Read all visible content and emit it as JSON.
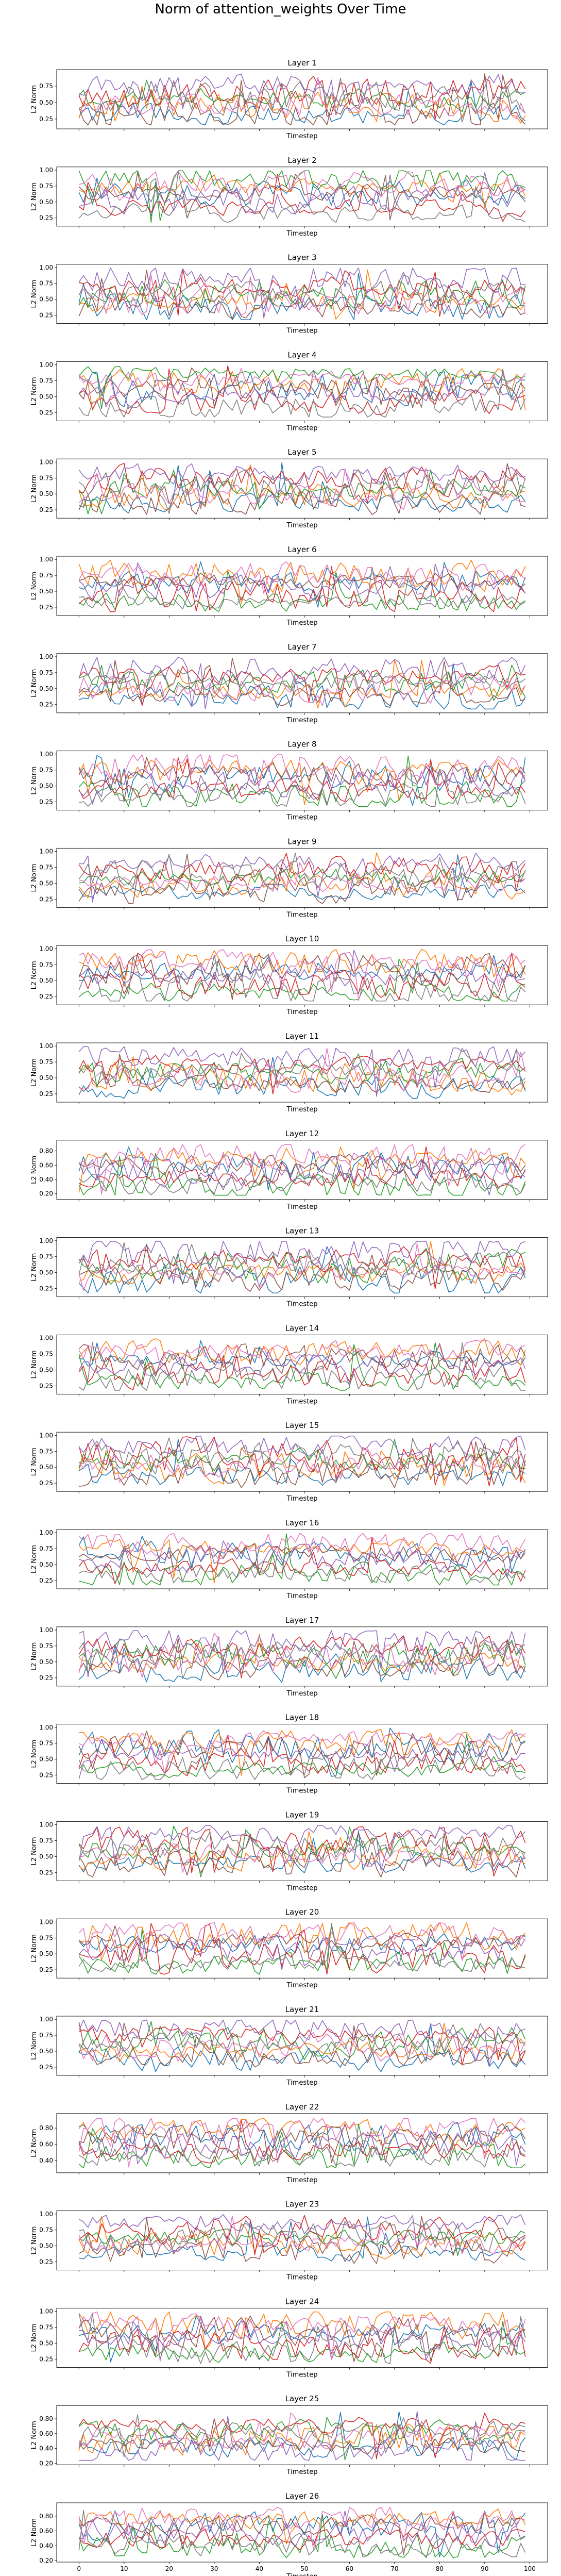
{
  "figure_title": "Norm of attention_weights Over Time",
  "colors": [
    "#1f77b4",
    "#ff7f0e",
    "#2ca02c",
    "#d62728",
    "#9467bd",
    "#8c564b",
    "#e377c2",
    "#7f7f7f"
  ],
  "chart_data": [
    {
      "type": "line",
      "title": "Layer 1",
      "xlabel": "Timestep",
      "ylabel": "L2 Norm",
      "xlim": [
        0,
        99
      ],
      "ylim": [
        0.1,
        1.0
      ],
      "yticks": [
        0.25,
        0.5,
        0.75
      ],
      "show_x_tick_labels": false,
      "seed": 1
    },
    {
      "type": "line",
      "title": "Layer 2",
      "xlabel": "Timestep",
      "ylabel": "L2 Norm",
      "xlim": [
        0,
        99
      ],
      "ylim": [
        0.12,
        1.05
      ],
      "yticks": [
        0.25,
        0.5,
        0.75,
        1.0
      ],
      "show_x_tick_labels": false,
      "seed": 2
    },
    {
      "type": "line",
      "title": "Layer 3",
      "xlabel": "Timestep",
      "ylabel": "L2 Norm",
      "xlim": [
        0,
        99
      ],
      "ylim": [
        0.12,
        1.05
      ],
      "yticks": [
        0.25,
        0.5,
        0.75,
        1.0
      ],
      "show_x_tick_labels": false,
      "seed": 3
    },
    {
      "type": "line",
      "title": "Layer 4",
      "xlabel": "Timestep",
      "ylabel": "L2 Norm",
      "xlim": [
        0,
        99
      ],
      "ylim": [
        0.12,
        1.05
      ],
      "yticks": [
        0.25,
        0.5,
        0.75,
        1.0
      ],
      "show_x_tick_labels": false,
      "seed": 4
    },
    {
      "type": "line",
      "title": "Layer 5",
      "xlabel": "Timestep",
      "ylabel": "L2 Norm",
      "xlim": [
        0,
        99
      ],
      "ylim": [
        0.12,
        1.05
      ],
      "yticks": [
        0.25,
        0.5,
        0.75,
        1.0
      ],
      "show_x_tick_labels": false,
      "seed": 5
    },
    {
      "type": "line",
      "title": "Layer 6",
      "xlabel": "Timestep",
      "ylabel": "L2 Norm",
      "xlim": [
        0,
        99
      ],
      "ylim": [
        0.12,
        1.05
      ],
      "yticks": [
        0.25,
        0.5,
        0.75,
        1.0
      ],
      "show_x_tick_labels": false,
      "seed": 6
    },
    {
      "type": "line",
      "title": "Layer 7",
      "xlabel": "Timestep",
      "ylabel": "L2 Norm",
      "xlim": [
        0,
        99
      ],
      "ylim": [
        0.12,
        1.05
      ],
      "yticks": [
        0.25,
        0.5,
        0.75,
        1.0
      ],
      "show_x_tick_labels": false,
      "seed": 7
    },
    {
      "type": "line",
      "title": "Layer 8",
      "xlabel": "Timestep",
      "ylabel": "L2 Norm",
      "xlim": [
        0,
        99
      ],
      "ylim": [
        0.12,
        1.05
      ],
      "yticks": [
        0.25,
        0.5,
        0.75,
        1.0
      ],
      "show_x_tick_labels": false,
      "seed": 8
    },
    {
      "type": "line",
      "title": "Layer 9",
      "xlabel": "Timestep",
      "ylabel": "L2 Norm",
      "xlim": [
        0,
        99
      ],
      "ylim": [
        0.12,
        1.05
      ],
      "yticks": [
        0.25,
        0.5,
        0.75,
        1.0
      ],
      "show_x_tick_labels": false,
      "seed": 9
    },
    {
      "type": "line",
      "title": "Layer 10",
      "xlabel": "Timestep",
      "ylabel": "L2 Norm",
      "xlim": [
        0,
        99
      ],
      "ylim": [
        0.12,
        1.05
      ],
      "yticks": [
        0.25,
        0.5,
        0.75,
        1.0
      ],
      "show_x_tick_labels": false,
      "seed": 10
    },
    {
      "type": "line",
      "title": "Layer 11",
      "xlabel": "Timestep",
      "ylabel": "L2 Norm",
      "xlim": [
        0,
        99
      ],
      "ylim": [
        0.12,
        1.05
      ],
      "yticks": [
        0.25,
        0.5,
        0.75,
        1.0
      ],
      "show_x_tick_labels": false,
      "seed": 11
    },
    {
      "type": "line",
      "title": "Layer 12",
      "xlabel": "Timestep",
      "ylabel": "L2 Norm",
      "xlim": [
        0,
        99
      ],
      "ylim": [
        0.12,
        0.95
      ],
      "yticks": [
        0.2,
        0.4,
        0.6,
        0.8
      ],
      "show_x_tick_labels": false,
      "seed": 12
    },
    {
      "type": "line",
      "title": "Layer 13",
      "xlabel": "Timestep",
      "ylabel": "L2 Norm",
      "xlim": [
        0,
        99
      ],
      "ylim": [
        0.12,
        1.05
      ],
      "yticks": [
        0.25,
        0.5,
        0.75,
        1.0
      ],
      "show_x_tick_labels": false,
      "seed": 13
    },
    {
      "type": "line",
      "title": "Layer 14",
      "xlabel": "Timestep",
      "ylabel": "L2 Norm",
      "xlim": [
        0,
        99
      ],
      "ylim": [
        0.12,
        1.05
      ],
      "yticks": [
        0.25,
        0.5,
        0.75,
        1.0
      ],
      "show_x_tick_labels": false,
      "seed": 14
    },
    {
      "type": "line",
      "title": "Layer 15",
      "xlabel": "Timestep",
      "ylabel": "L2 Norm",
      "xlim": [
        0,
        99
      ],
      "ylim": [
        0.12,
        1.05
      ],
      "yticks": [
        0.25,
        0.5,
        0.75,
        1.0
      ],
      "show_x_tick_labels": false,
      "seed": 15
    },
    {
      "type": "line",
      "title": "Layer 16",
      "xlabel": "Timestep",
      "ylabel": "L2 Norm",
      "xlim": [
        0,
        99
      ],
      "ylim": [
        0.12,
        1.05
      ],
      "yticks": [
        0.25,
        0.5,
        0.75,
        1.0
      ],
      "show_x_tick_labels": false,
      "seed": 16
    },
    {
      "type": "line",
      "title": "Layer 17",
      "xlabel": "Timestep",
      "ylabel": "L2 Norm",
      "xlim": [
        0,
        99
      ],
      "ylim": [
        0.12,
        1.05
      ],
      "yticks": [
        0.25,
        0.5,
        0.75,
        1.0
      ],
      "show_x_tick_labels": false,
      "seed": 17
    },
    {
      "type": "line",
      "title": "Layer 18",
      "xlabel": "Timestep",
      "ylabel": "L2 Norm",
      "xlim": [
        0,
        99
      ],
      "ylim": [
        0.12,
        1.05
      ],
      "yticks": [
        0.25,
        0.5,
        0.75,
        1.0
      ],
      "show_x_tick_labels": false,
      "seed": 18
    },
    {
      "type": "line",
      "title": "Layer 19",
      "xlabel": "Timestep",
      "ylabel": "L2 Norm",
      "xlim": [
        0,
        99
      ],
      "ylim": [
        0.12,
        1.05
      ],
      "yticks": [
        0.25,
        0.5,
        0.75,
        1.0
      ],
      "show_x_tick_labels": false,
      "seed": 19
    },
    {
      "type": "line",
      "title": "Layer 20",
      "xlabel": "Timestep",
      "ylabel": "L2 Norm",
      "xlim": [
        0,
        99
      ],
      "ylim": [
        0.12,
        1.05
      ],
      "yticks": [
        0.25,
        0.5,
        0.75,
        1.0
      ],
      "show_x_tick_labels": false,
      "seed": 20
    },
    {
      "type": "line",
      "title": "Layer 21",
      "xlabel": "Timestep",
      "ylabel": "L2 Norm",
      "xlim": [
        0,
        99
      ],
      "ylim": [
        0.12,
        1.05
      ],
      "yticks": [
        0.25,
        0.5,
        0.75,
        1.0
      ],
      "show_x_tick_labels": false,
      "seed": 21
    },
    {
      "type": "line",
      "title": "Layer 22",
      "xlabel": "Timestep",
      "ylabel": "L2 Norm",
      "xlim": [
        0,
        99
      ],
      "ylim": [
        0.25,
        0.98
      ],
      "yticks": [
        0.4,
        0.6,
        0.8
      ],
      "show_x_tick_labels": false,
      "seed": 22
    },
    {
      "type": "line",
      "title": "Layer 23",
      "xlabel": "Timestep",
      "ylabel": "L2 Norm",
      "xlim": [
        0,
        99
      ],
      "ylim": [
        0.12,
        1.05
      ],
      "yticks": [
        0.25,
        0.5,
        0.75,
        1.0
      ],
      "show_x_tick_labels": false,
      "seed": 23
    },
    {
      "type": "line",
      "title": "Layer 24",
      "xlabel": "Timestep",
      "ylabel": "L2 Norm",
      "xlim": [
        0,
        99
      ],
      "ylim": [
        0.12,
        1.05
      ],
      "yticks": [
        0.25,
        0.5,
        0.75,
        1.0
      ],
      "show_x_tick_labels": false,
      "seed": 24
    },
    {
      "type": "line",
      "title": "Layer 25",
      "xlabel": "Timestep",
      "ylabel": "L2 Norm",
      "xlim": [
        0,
        99
      ],
      "ylim": [
        0.18,
        0.98
      ],
      "yticks": [
        0.2,
        0.4,
        0.6,
        0.8
      ],
      "show_x_tick_labels": false,
      "seed": 25
    },
    {
      "type": "line",
      "title": "Layer 26",
      "xlabel": "Timestep",
      "ylabel": "L2 Norm",
      "xlim": [
        0,
        99
      ],
      "ylim": [
        0.18,
        0.98
      ],
      "yticks": [
        0.2,
        0.4,
        0.6,
        0.8
      ],
      "show_x_tick_labels": true,
      "xticks": [
        0,
        10,
        20,
        30,
        40,
        50,
        60,
        70,
        80,
        90,
        100
      ],
      "seed": 26
    }
  ]
}
